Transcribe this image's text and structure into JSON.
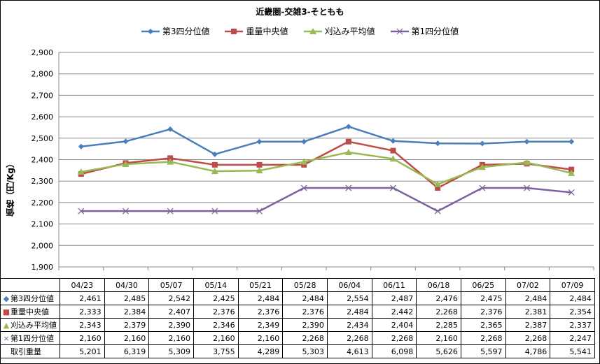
{
  "chart_data": {
    "type": "line",
    "title": "近畿圏-交雑3-そともも",
    "ylabel": "価格（円/Kg）",
    "ylim": [
      1900,
      2900
    ],
    "yticks": [
      1900,
      2000,
      2100,
      2200,
      2300,
      2400,
      2500,
      2600,
      2700,
      2800,
      2900
    ],
    "ytick_labels": [
      "1,900",
      "2,000",
      "2,100",
      "2,200",
      "2,300",
      "2,400",
      "2,500",
      "2,600",
      "2,700",
      "2,800",
      "2,900"
    ],
    "grid": true,
    "legend_position": "top",
    "categories": [
      "04/23",
      "04/30",
      "05/07",
      "05/14",
      "05/21",
      "05/28",
      "06/04",
      "06/11",
      "06/18",
      "06/25",
      "07/02",
      "07/09"
    ],
    "series": [
      {
        "name": "第3四分位値",
        "color": "#4a7ebb",
        "marker": "diamond",
        "values": [
          2461,
          2485,
          2542,
          2425,
          2484,
          2484,
          2554,
          2487,
          2476,
          2475,
          2484,
          2484
        ]
      },
      {
        "name": "重量中央値",
        "color": "#be4b48",
        "marker": "square",
        "values": [
          2333,
          2384,
          2407,
          2376,
          2376,
          2376,
          2484,
          2442,
          2268,
          2376,
          2381,
          2354
        ]
      },
      {
        "name": "刈込み平均値",
        "color": "#98b954",
        "marker": "triangle",
        "values": [
          2343,
          2379,
          2390,
          2346,
          2349,
          2390,
          2434,
          2404,
          2285,
          2365,
          2387,
          2337
        ]
      },
      {
        "name": "第1四分位値",
        "color": "#7d60a0",
        "marker": "x",
        "values": [
          2160,
          2160,
          2160,
          2160,
          2160,
          2268,
          2268,
          2268,
          2160,
          2268,
          2268,
          2247
        ]
      }
    ],
    "table": {
      "rows": [
        {
          "label": "第3四分位値",
          "marker": "diamond",
          "color": "#4a7ebb",
          "cells": [
            "2,461",
            "2,485",
            "2,542",
            "2,425",
            "2,484",
            "2,484",
            "2,554",
            "2,487",
            "2,476",
            "2,475",
            "2,484",
            "2,484"
          ]
        },
        {
          "label": "重量中央値",
          "marker": "square",
          "color": "#be4b48",
          "cells": [
            "2,333",
            "2,384",
            "2,407",
            "2,376",
            "2,376",
            "2,376",
            "2,484",
            "2,442",
            "2,268",
            "2,376",
            "2,381",
            "2,354"
          ]
        },
        {
          "label": "刈込み平均値",
          "marker": "triangle",
          "color": "#98b954",
          "cells": [
            "2,343",
            "2,379",
            "2,390",
            "2,346",
            "2,349",
            "2,390",
            "2,434",
            "2,404",
            "2,285",
            "2,365",
            "2,387",
            "2,337"
          ]
        },
        {
          "label": "第1四分位値",
          "marker": "x",
          "color": "#7d60a0",
          "cells": [
            "2,160",
            "2,160",
            "2,160",
            "2,160",
            "2,160",
            "2,268",
            "2,268",
            "2,268",
            "2,160",
            "2,268",
            "2,268",
            "2,247"
          ]
        },
        {
          "label": "取引重量",
          "marker": "",
          "color": "",
          "cells": [
            "5,201",
            "6,319",
            "5,309",
            "3,755",
            "4,289",
            "5,303",
            "4,613",
            "6,098",
            "5,626",
            "5,597",
            "4,786",
            "5,541"
          ]
        }
      ]
    }
  }
}
